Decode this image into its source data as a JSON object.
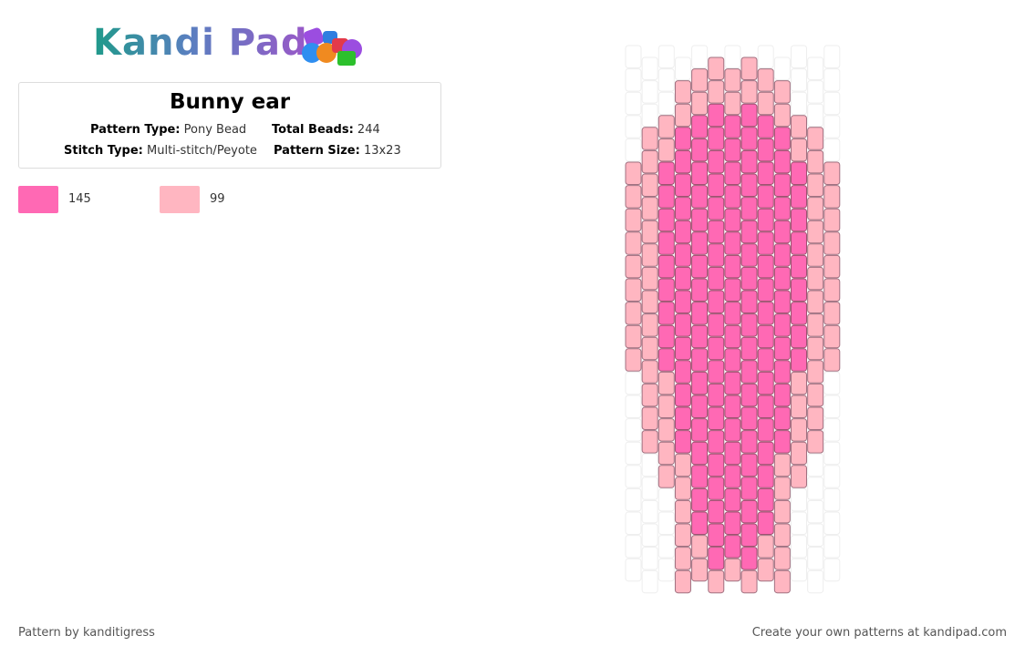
{
  "header": {
    "logo": "Kandi Pad"
  },
  "pattern": {
    "title": "Bunny ear",
    "fields": [
      {
        "label": "Pattern Type:",
        "value": "Pony Bead"
      },
      {
        "label": "Total Beads:",
        "value": "244"
      },
      {
        "label": "Stitch Type:",
        "value": "Multi-stitch/Peyote"
      },
      {
        "label": "Pattern Size:",
        "value": "13x23"
      }
    ]
  },
  "legend": [
    {
      "count": "145"
    },
    {
      "count": "99"
    }
  ],
  "footer": {
    "left": "Pattern by kanditigress",
    "right": "Create your own patterns at kandipad.com"
  }
}
